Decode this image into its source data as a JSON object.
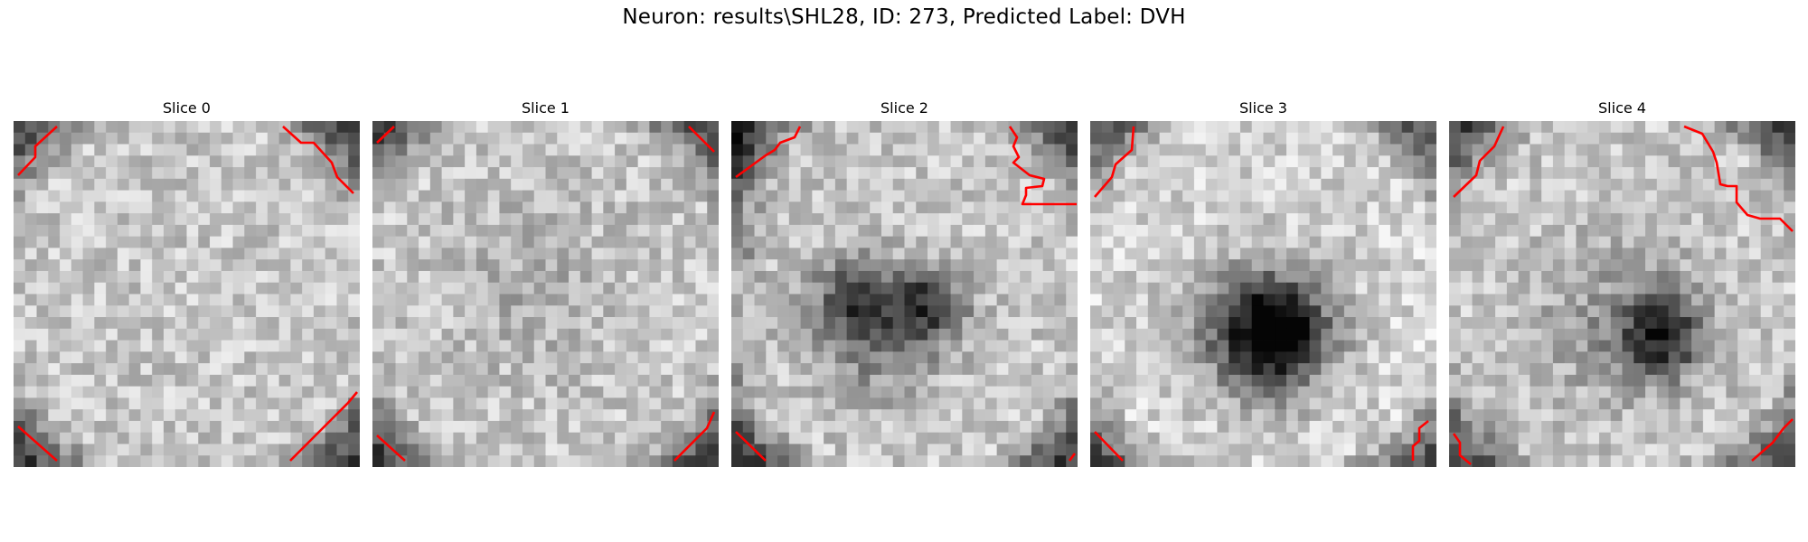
{
  "figure": {
    "title": "Neuron: results\\SHL28, ID: 273, Predicted Label: DVH"
  },
  "colors": {
    "contour": "#ff0000",
    "background": "#ffffff"
  },
  "colormap": "gray",
  "slices": [
    {
      "title": "Slice 0",
      "feature": "uniform-bright"
    },
    {
      "title": "Slice 1",
      "feature": "uniform-bright-faint-center"
    },
    {
      "title": "Slice 2",
      "feature": "dark-double-blob"
    },
    {
      "title": "Slice 3",
      "feature": "dark-center-blob"
    },
    {
      "title": "Slice 4",
      "feature": "dark-center-small"
    }
  ]
}
